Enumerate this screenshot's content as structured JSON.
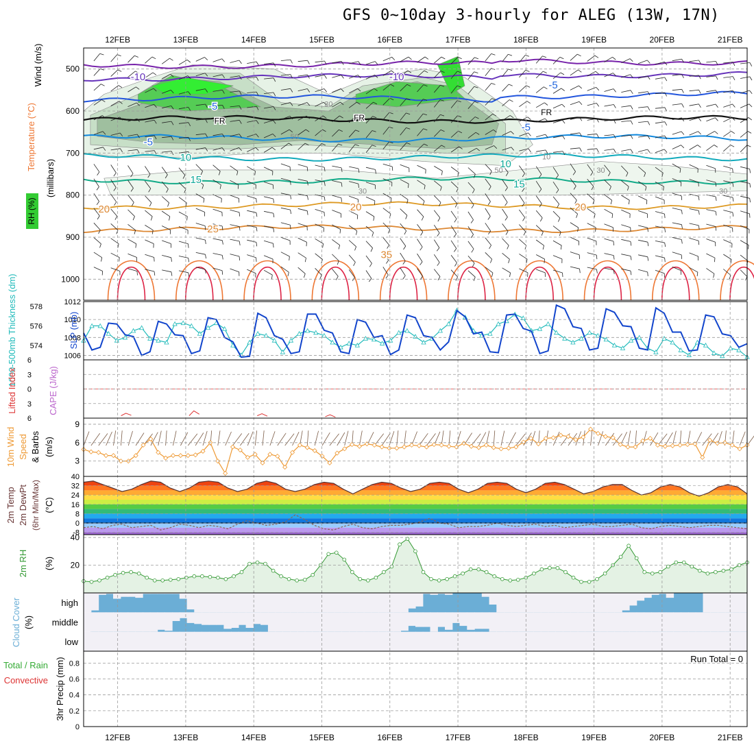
{
  "title": "GFS 0~10day 3-hourly for ALEG (13W, 17N)",
  "dates": [
    "12FEB",
    "13FEB",
    "14FEB",
    "15FEB",
    "16FEB",
    "17FEB",
    "18FEB",
    "19FEB",
    "20FEB",
    "21FEB"
  ],
  "colors": {
    "rh": "#33cc33",
    "temp_label": "#ee7733",
    "wind_label": "#000000",
    "thick": "#22bbbb",
    "slp": "#1144cc",
    "li": "#dd3333",
    "cape": "#bb66cc",
    "wspd": "#ee9933",
    "rh2m": "#339933",
    "cloud": "#6baed6",
    "precip_total": "#33aa33",
    "precip_conv": "#dd3333"
  },
  "chart_data": [
    {
      "type": "contour",
      "name": "upper-air",
      "ylabel_units": "(millibars)",
      "legend_labels": {
        "rh": "RH (%)",
        "temp": "Temperature (°C)",
        "wind": "Wind (m/s)"
      },
      "yticks": [
        500,
        600,
        700,
        800,
        900,
        1000
      ],
      "ylim": [
        450,
        1050
      ],
      "temperature_labels": [
        {
          "t": 0.8,
          "p": 520,
          "text": "-10"
        },
        {
          "t": 4.6,
          "p": 520,
          "text": "-10"
        },
        {
          "t": 1.9,
          "p": 590,
          "text": "-5"
        },
        {
          "t": 6.9,
          "p": 540,
          "text": "-5"
        },
        {
          "t": 0.95,
          "p": 675,
          "text": "-5"
        },
        {
          "t": 6.5,
          "p": 640,
          "text": "-5"
        },
        {
          "t": 2.0,
          "p": 625,
          "text": "FR"
        },
        {
          "t": 4.05,
          "p": 618,
          "text": "FR"
        },
        {
          "t": 6.8,
          "p": 605,
          "text": "FR"
        },
        {
          "t": 1.5,
          "p": 712,
          "text": "10"
        },
        {
          "t": 6.2,
          "p": 727,
          "text": "10"
        },
        {
          "t": 1.65,
          "p": 765,
          "text": "15"
        },
        {
          "t": 6.4,
          "p": 775,
          "text": "15"
        },
        {
          "t": 0.3,
          "p": 835,
          "text": "20"
        },
        {
          "t": 4.0,
          "p": 830,
          "text": "20"
        },
        {
          "t": 7.3,
          "p": 830,
          "text": "20"
        },
        {
          "t": 1.9,
          "p": 882,
          "text": "25"
        },
        {
          "t": 4.45,
          "p": 943,
          "text": "35"
        }
      ],
      "rh_labels": [
        {
          "t": 3.6,
          "p": 585,
          "text": "30"
        },
        {
          "t": 3.1,
          "p": 662,
          "text": "50"
        },
        {
          "t": 6.8,
          "p": 710,
          "text": "10"
        },
        {
          "t": 6.1,
          "p": 742,
          "text": "50"
        },
        {
          "t": 7.6,
          "p": 742,
          "text": "30"
        },
        {
          "t": 4.1,
          "p": 792,
          "text": "30"
        },
        {
          "t": 9.4,
          "p": 792,
          "text": "30"
        }
      ]
    },
    {
      "type": "line",
      "name": "thickness-slp",
      "left_axis": {
        "label": "1000-500mb Thickness (dm)",
        "ticks": [
          574,
          576,
          578
        ],
        "range": [
          572.5,
          578.5
        ]
      },
      "right_axis": {
        "label": "SLP (mb)",
        "ticks": [
          1006,
          1008,
          1010,
          1012
        ],
        "range": [
          1005.5,
          1012
        ]
      },
      "series": [
        {
          "name": "Thickness (dm)",
          "axis": "left",
          "values": [
            574.5,
            576.0,
            576.0,
            575.2,
            574.5,
            574.8,
            575.5,
            575.8,
            574.7,
            574.5,
            574.3,
            576.2,
            576.3,
            576.0,
            575.2,
            575.8,
            576.3,
            575.7,
            574.0,
            573.0,
            574.3,
            575.2,
            575.0,
            574.5,
            573.3,
            574.5,
            575.2,
            575.5,
            575.3,
            575.0,
            574.3,
            573.8,
            574.2,
            574.0,
            574.7,
            574.6,
            574.2,
            574.5,
            575.3,
            575.5,
            574.9,
            574.3,
            574.7,
            575.5,
            576.2,
            577.6,
            576.9,
            575.5,
            575.0,
            575.2,
            576.2,
            576.5,
            577.2,
            576.8,
            575.5,
            575.7,
            576.2,
            575.3,
            574.7,
            574.3,
            574.7,
            575.3,
            575.0,
            574.6,
            574.0,
            573.7,
            574.5,
            574.8,
            573.7,
            573.3,
            574.7,
            574.3,
            573.5,
            573.0,
            574.3,
            574.0,
            573.2,
            572.9,
            573.7,
            573.5,
            572.8
          ]
        },
        {
          "name": "SLP (mb)",
          "axis": "right",
          "values": [
            1008.5,
            1006.6,
            1006.9,
            1009.6,
            1009.5,
            1008.3,
            1008.1,
            1006.0,
            1006.4,
            1009.8,
            1009.5,
            1008.3,
            1008.2,
            1006.2,
            1006.5,
            1010.2,
            1010.0,
            1008.0,
            1007.5,
            1005.8,
            1005.9,
            1010.7,
            1010.2,
            1008.2,
            1007.8,
            1006.2,
            1006.4,
            1010.6,
            1010.6,
            1008.8,
            1008.5,
            1006.4,
            1006.2,
            1010.0,
            1009.7,
            1008.0,
            1008.2,
            1006.1,
            1006.6,
            1010.5,
            1010.2,
            1008.2,
            1008.0,
            1006.6,
            1007.5,
            1011.0,
            1010.3,
            1008.4,
            1008.6,
            1006.4,
            1006.3,
            1010.5,
            1010.6,
            1009.0,
            1008.7,
            1006.2,
            1006.5,
            1011.6,
            1011.2,
            1009.2,
            1009.0,
            1006.6,
            1006.8,
            1011.2,
            1010.8,
            1009.3,
            1009.2,
            1006.8,
            1006.6,
            1011.3,
            1010.7,
            1008.6,
            1008.6,
            1006.5,
            1006.6,
            1010.5,
            1010.3,
            1008.4,
            1008.2,
            1006.9,
            1007.3
          ]
        }
      ]
    },
    {
      "type": "line",
      "name": "lifted-index-cape",
      "left_axis": {
        "label": "Lifted Index",
        "ticks": [
          -6,
          -3,
          0,
          3,
          6
        ],
        "range": [
          -6,
          6
        ]
      },
      "right_axis": {
        "label": "CAPE (J/kg)"
      },
      "series": [
        {
          "name": "Lifted Index",
          "points": [
            [
              0.55,
              5.5
            ],
            [
              0.62,
              5.0
            ],
            [
              0.7,
              5.4
            ],
            [
              1.55,
              5.5
            ],
            [
              1.62,
              4.5
            ],
            [
              1.7,
              5.2
            ],
            [
              2.55,
              5.5
            ],
            [
              2.62,
              5.1
            ],
            [
              2.7,
              5.6
            ],
            [
              3.55,
              5.7
            ],
            [
              3.62,
              5.3
            ],
            [
              3.7,
              5.8
            ]
          ]
        }
      ]
    },
    {
      "type": "line",
      "name": "10m-wind",
      "label": "10m Wind Speed & Barbs (m/s)",
      "yticks": [
        3,
        6,
        9
      ],
      "ylim": [
        0.5,
        10
      ],
      "series": [
        {
          "name": "Wind Speed (m/s)",
          "values": [
            4.9,
            4.5,
            4.4,
            3.9,
            3.9,
            3.0,
            3.0,
            3.9,
            5.6,
            6.6,
            4.4,
            3.5,
            3.9,
            3.9,
            3.9,
            4.0,
            4.6,
            6.0,
            3.0,
            1.0,
            5.3,
            4.8,
            3.6,
            4.1,
            2.7,
            4.1,
            3.8,
            2.0,
            4.4,
            5.6,
            5.2,
            4.7,
            3.8,
            2.7,
            4.3,
            5.0,
            5.7,
            5.4,
            5.8,
            5.6,
            5.3,
            5.1,
            5.1,
            5.3,
            5.6,
            5.5,
            5.3,
            5.7,
            5.6,
            5.4,
            5.3,
            5.9,
            5.4,
            5.2,
            5.6,
            5.2,
            5.0,
            5.1,
            5.3,
            6.1,
            6.7,
            5.8,
            6.7,
            6.8,
            7.2,
            7.0,
            6.5,
            6.9,
            8.2,
            7.5,
            7.0,
            6.8,
            5.7,
            5.3,
            5.3,
            6.3,
            6.7,
            5.6,
            5.4,
            5.5,
            5.6,
            5.7,
            5.8,
            3.6,
            6.4,
            5.9,
            6.0,
            5.6,
            5.0,
            5.6
          ]
        }
      ]
    },
    {
      "type": "area",
      "name": "2m-temp",
      "label": "2m Temp 2m DewPt (6hr Min/Max) (°C)",
      "yticks": [
        -8,
        0,
        8,
        16,
        24,
        32,
        40
      ],
      "ylim": [
        -10,
        40
      ],
      "series": [
        {
          "name": "2m Temp",
          "values": [
            35,
            36,
            33,
            30,
            27,
            29,
            33,
            36,
            35,
            30,
            27,
            30,
            35,
            36,
            35,
            30,
            27,
            29,
            34,
            36,
            34,
            29,
            27,
            29,
            33,
            35,
            34,
            29,
            25,
            29,
            33,
            35,
            34,
            30,
            27,
            29,
            34,
            35,
            34,
            29,
            26,
            29,
            34,
            35,
            34,
            29,
            26,
            29,
            34,
            35,
            33,
            29,
            25,
            27,
            31,
            33,
            33,
            28,
            24,
            26,
            31,
            33,
            31,
            26,
            23,
            26,
            31,
            33,
            31,
            25
          ]
        },
        {
          "name": "2m DewPt",
          "values": [
            -4,
            -3,
            -5,
            -2,
            -1,
            -4,
            -3,
            -2,
            -6,
            -4,
            -1,
            -2,
            -4,
            -2,
            -3,
            -5,
            -1,
            2,
            0,
            -2,
            -1,
            1,
            7,
            3,
            -2,
            -5,
            -6,
            -3,
            -1,
            -4,
            -5,
            -3,
            -2,
            -2,
            -1,
            1,
            4,
            0,
            -1,
            -4,
            -3,
            -3,
            -2,
            0,
            -2,
            -3,
            -2,
            -1,
            -3,
            -2,
            -4,
            -3,
            -2,
            -1,
            -3,
            -3,
            -2,
            -1,
            -4,
            -5,
            -3,
            -2,
            -3,
            -4,
            -3,
            -2,
            -2,
            -3,
            -4,
            -5
          ]
        }
      ]
    },
    {
      "type": "area",
      "name": "2m-rh",
      "label": "2m RH (%)",
      "yticks": [
        20,
        40
      ],
      "ylim": [
        0,
        42
      ],
      "series": [
        {
          "name": "2m RH",
          "values": [
            8.5,
            8,
            9,
            11,
            13,
            14.5,
            15,
            14,
            11,
            9,
            9,
            9.5,
            10,
            11,
            12,
            12,
            11.5,
            11,
            10,
            12,
            15,
            21,
            22,
            21,
            16,
            12,
            10,
            9,
            9.5,
            13,
            20,
            28,
            29,
            24,
            15,
            10,
            9,
            11,
            15,
            19,
            35,
            39,
            30,
            15,
            10,
            9,
            10,
            12,
            14,
            17,
            17,
            15,
            12,
            10,
            9,
            9.5,
            11,
            14,
            17,
            18,
            18,
            15,
            11,
            8,
            8,
            10,
            14,
            20,
            26,
            34,
            25,
            15,
            14,
            15,
            19,
            22,
            22,
            19,
            16,
            14,
            15,
            16,
            17,
            20,
            22
          ]
        }
      ]
    },
    {
      "type": "area",
      "name": "cloud-cover",
      "label": "Cloud Cover (%)",
      "levels": [
        "high",
        "middle",
        "low"
      ],
      "series": [
        {
          "name": "high",
          "values": [
            0,
            10,
            90,
            95,
            70,
            80,
            80,
            75,
            95,
            95,
            95,
            95,
            95,
            70,
            15,
            0,
            0,
            0,
            0,
            0,
            0,
            0,
            0,
            0,
            0,
            0,
            0,
            0,
            0,
            0,
            0,
            0,
            0,
            0,
            0,
            0,
            0,
            0,
            0,
            0,
            0,
            0,
            0,
            0,
            20,
            30,
            95,
            90,
            95,
            90,
            100,
            100,
            100,
            100,
            80,
            40,
            0,
            0,
            0,
            0,
            0,
            0,
            0,
            0,
            0,
            0,
            0,
            0,
            0,
            0,
            0,
            0,
            0,
            10,
            35,
            60,
            75,
            90,
            95,
            75,
            100,
            100,
            100,
            100,
            0,
            0,
            0,
            0,
            0,
            0
          ]
        },
        {
          "name": "middle",
          "values": [
            0,
            0,
            0,
            0,
            0,
            0,
            0,
            0,
            0,
            0,
            10,
            5,
            55,
            70,
            45,
            40,
            35,
            35,
            35,
            15,
            20,
            35,
            20,
            40,
            35,
            0,
            0,
            0,
            0,
            0,
            0,
            0,
            0,
            0,
            0,
            0,
            0,
            0,
            0,
            0,
            0,
            0,
            0,
            5,
            30,
            25,
            25,
            0,
            25,
            10,
            45,
            30,
            10,
            15,
            15,
            0,
            0,
            0,
            0,
            0,
            0,
            0,
            0,
            0,
            0,
            0,
            0,
            0,
            0,
            0,
            0,
            0,
            0,
            0,
            0,
            0,
            0,
            0,
            0,
            0,
            0,
            0,
            0,
            0,
            0,
            0,
            0,
            0,
            0,
            0
          ]
        },
        {
          "name": "low",
          "values": [
            0,
            0,
            0,
            0,
            0,
            0,
            0,
            0,
            0,
            0,
            0,
            0,
            0,
            0,
            0,
            0,
            0,
            0,
            0,
            0,
            0,
            0,
            0,
            0,
            0,
            0,
            0,
            0,
            0,
            0,
            0,
            0,
            0,
            0,
            0,
            0,
            0,
            0,
            0,
            0,
            0,
            0,
            0,
            0,
            0,
            0,
            0,
            0,
            0,
            0,
            0,
            0,
            0,
            0,
            0,
            0,
            0,
            0,
            0,
            0,
            0,
            0,
            0,
            0,
            0,
            0,
            0,
            0,
            0,
            0,
            0,
            0,
            0,
            0,
            0,
            0,
            0,
            0,
            0,
            0,
            0,
            0,
            0,
            0,
            0,
            0,
            0,
            0,
            0,
            0
          ]
        }
      ]
    },
    {
      "type": "bar",
      "name": "precip",
      "label": "3hr Precip (mm)",
      "legend": [
        "Total / Rain",
        "Convective"
      ],
      "yticks": [
        0,
        0.2,
        0.4,
        0.6,
        0.8
      ],
      "ylim": [
        0,
        0.95
      ],
      "run_total": "Run Total = 0",
      "series": [
        {
          "name": "Total",
          "values": []
        },
        {
          "name": "Convective",
          "values": []
        }
      ]
    }
  ]
}
